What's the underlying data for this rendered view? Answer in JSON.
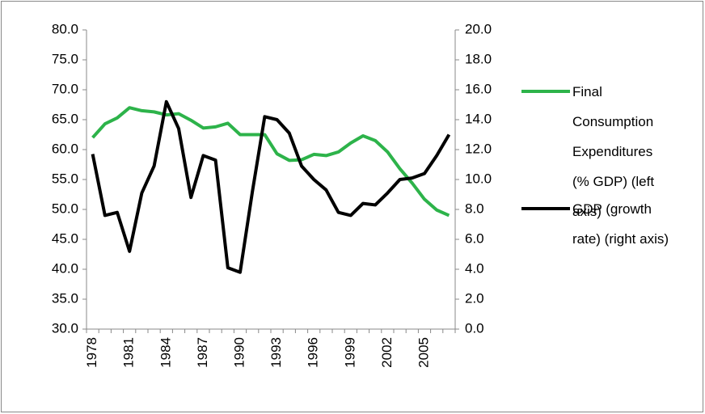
{
  "chart_data": {
    "type": "line",
    "categories": [
      "1978",
      null,
      null,
      "1981",
      null,
      null,
      "1984",
      null,
      null,
      "1987",
      null,
      null,
      "1990",
      null,
      null,
      "1993",
      null,
      null,
      "1996",
      null,
      null,
      "1999",
      null,
      null,
      "2002",
      null,
      null,
      "2005",
      null,
      null
    ],
    "series": [
      {
        "name": "Final Consumption Expenditures (% GDP) (left axis)",
        "color": "#2db34a",
        "values": [
          62.0,
          64.3,
          65.3,
          67.0,
          66.5,
          66.3,
          65.8,
          66.0,
          64.9,
          63.6,
          63.8,
          64.4,
          62.5,
          62.5,
          62.5,
          59.3,
          58.2,
          58.3,
          59.2,
          59.0,
          59.6,
          61.1,
          62.3,
          61.5,
          59.6,
          56.8,
          54.4,
          51.7,
          49.9,
          49.0
        ]
      },
      {
        "name": "GDP (growth rate) (right axis)",
        "color": "#000000",
        "axis": "y2",
        "values": [
          11.7,
          7.6,
          7.8,
          5.2,
          9.1,
          10.9,
          15.2,
          13.4,
          8.8,
          11.6,
          11.3,
          4.1,
          3.8,
          9.2,
          14.2,
          14.0,
          13.1,
          10.9,
          10.0,
          9.3,
          7.8,
          7.6,
          8.4,
          8.3,
          9.1,
          10.0,
          10.1,
          10.4,
          11.6,
          13.0
        ]
      }
    ],
    "ylim": [
      30,
      80
    ],
    "yticks": [
      {
        "value": 30,
        "label": "30.0"
      },
      {
        "value": 35,
        "label": "35.0"
      },
      {
        "value": 40,
        "label": "40.0"
      },
      {
        "value": 45,
        "label": "45.0"
      },
      {
        "value": 50,
        "label": "50.0"
      },
      {
        "value": 55,
        "label": "55.0"
      },
      {
        "value": 60,
        "label": "60.0"
      },
      {
        "value": 65,
        "label": "65.0"
      },
      {
        "value": 70,
        "label": "70.0"
      },
      {
        "value": 75,
        "label": "75.0"
      },
      {
        "value": 80,
        "label": "80.0"
      }
    ],
    "y2lim": [
      0,
      20
    ],
    "y2ticks": [
      {
        "value": 0,
        "label": "0.0"
      },
      {
        "value": 2,
        "label": "2.0"
      },
      {
        "value": 4,
        "label": "4.0"
      },
      {
        "value": 6,
        "label": "6.0"
      },
      {
        "value": 8,
        "label": "8.0"
      },
      {
        "value": 10,
        "label": "10.0"
      },
      {
        "value": 12,
        "label": "12.0"
      },
      {
        "value": 14,
        "label": "14.0"
      },
      {
        "value": 16,
        "label": "16.0"
      },
      {
        "value": 18,
        "label": "18.0"
      },
      {
        "value": 20,
        "label": "20.0"
      }
    ],
    "grid": false,
    "legend": "right"
  }
}
